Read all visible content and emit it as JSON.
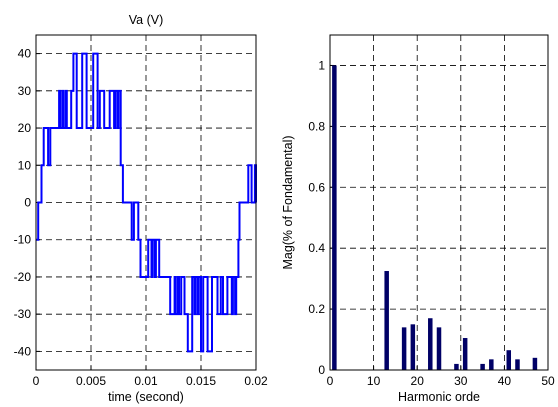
{
  "figure": {
    "background": "#ffffff",
    "line_color": "#0000ff",
    "bar_color": "#000066"
  },
  "chart_data": [
    {
      "type": "line",
      "title": "Va (V)",
      "xlabel": "time (second)",
      "ylabel": "",
      "xlim": [
        0,
        0.02
      ],
      "ylim": [
        -45,
        45
      ],
      "xticks": [
        0,
        0.005,
        0.01,
        0.015,
        0.02
      ],
      "xtick_labels": [
        "0",
        "0.005",
        "0.01",
        "0.015",
        "0.02"
      ],
      "yticks": [
        -40,
        -30,
        -20,
        -10,
        0,
        10,
        20,
        30,
        40
      ],
      "ytick_labels": [
        "-40",
        "-30",
        "-20",
        "-10",
        "0",
        "10",
        "20",
        "30",
        "40"
      ],
      "grid": true,
      "step": true,
      "series": [
        {
          "x": [
            0,
            0.0002,
            0.0005,
            0.0007,
            0.0011,
            0.0013,
            0.0021,
            0.0022,
            0.0024,
            0.0025,
            0.0027,
            0.0028,
            0.0032,
            0.0034,
            0.0037,
            0.0042,
            0.0046,
            0.0052,
            0.0056,
            0.0058,
            0.0062,
            0.0067,
            0.0071,
            0.0072,
            0.0074,
            0.0075,
            0.0077,
            0.0079,
            0.0087,
            0.0089,
            0.0093,
            0.0095,
            0.0102,
            0.0105,
            0.0106,
            0.0108,
            0.0109,
            0.0112,
            0.0122,
            0.0126,
            0.0127,
            0.0129,
            0.013,
            0.0132,
            0.0135,
            0.0138,
            0.0142,
            0.0144,
            0.0145,
            0.0147,
            0.0148,
            0.015,
            0.0152,
            0.0156,
            0.016,
            0.0165,
            0.0168,
            0.017,
            0.0174,
            0.0178,
            0.0179,
            0.0181,
            0.0182,
            0.0184,
            0.0185,
            0.0193,
            0.0196,
            0.0199,
            0.02
          ],
          "y": [
            -10,
            0,
            10,
            20,
            10,
            20,
            30,
            20,
            30,
            20,
            30,
            20,
            30,
            40,
            20,
            40,
            20,
            40,
            20,
            30,
            20,
            30,
            20,
            30,
            20,
            30,
            10,
            0,
            -10,
            0,
            -10,
            -20,
            -10,
            -20,
            -10,
            -20,
            -10,
            -20,
            -30,
            -20,
            -30,
            -20,
            -30,
            -20,
            -30,
            -40,
            -20,
            -30,
            -20,
            -30,
            -20,
            -40,
            -20,
            -40,
            -20,
            -30,
            -20,
            -30,
            -20,
            -30,
            -20,
            -30,
            -20,
            -10,
            0,
            10,
            0,
            10,
            0
          ]
        }
      ]
    },
    {
      "type": "bar",
      "title": "",
      "xlabel": "Harmonic orde",
      "ylabel": "Mag(% of Fondamental)",
      "xlim": [
        0,
        50
      ],
      "ylim": [
        0,
        1.1
      ],
      "xticks": [
        0,
        10,
        20,
        30,
        40,
        50
      ],
      "xtick_labels": [
        "0",
        "10",
        "20",
        "30",
        "40",
        "50"
      ],
      "yticks": [
        0,
        0.2,
        0.4,
        0.6,
        0.8,
        1
      ],
      "ytick_labels": [
        "0",
        "0.2",
        "0.4",
        "0.6",
        "0.8",
        "1"
      ],
      "grid": true,
      "x": [
        1,
        13,
        17,
        19,
        23,
        25,
        29,
        31,
        35,
        37,
        41,
        43,
        47
      ],
      "values": [
        1.0,
        0.325,
        0.14,
        0.15,
        0.17,
        0.14,
        0.02,
        0.105,
        0.02,
        0.035,
        0.065,
        0.035,
        0.04
      ]
    }
  ]
}
